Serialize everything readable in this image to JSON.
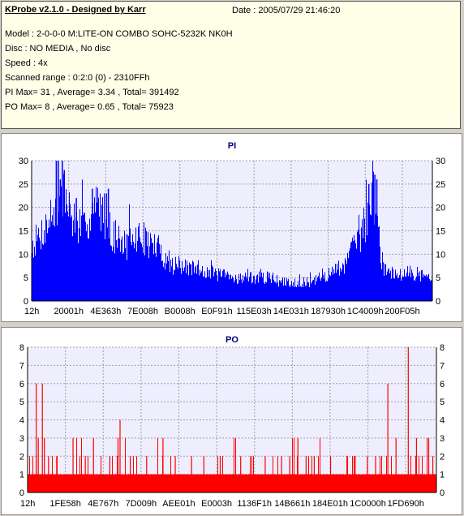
{
  "header": {
    "title": "KProbe v2.1.0 - Designed by Karr",
    "date": "Date : 2005/07/29 21:46:20",
    "lines": [
      "Model : 2-0-0-0 M:LITE-ON COMBO SOHC-5232K NK0H",
      "Disc : NO MEDIA , No disc",
      "Speed : 4x",
      "Scanned range : 0:2:0 (0) - 2310FFh",
      "PI Max= 31 , Average= 3.34 , Total= 391492",
      "PO Max= 8 , Average= 0.65 , Total= 75923"
    ]
  },
  "colors": {
    "pi": "#0000ff",
    "po": "#ff0000",
    "plot_bg": "#eeeeff",
    "grid": "#a0a0a0"
  },
  "chart_data": [
    {
      "type": "bar",
      "title": "PI",
      "ylim": [
        0,
        30
      ],
      "yticks": [
        0,
        5,
        10,
        15,
        20,
        25,
        30
      ],
      "xticks": [
        "12h",
        "20001h",
        "4E363h",
        "7E008h",
        "B0008h",
        "E0F91h",
        "115E03h",
        "14E031h",
        "187930h",
        "1C4009h",
        "200F05h"
      ],
      "profile": [
        [
          0,
          12
        ],
        [
          0.02,
          14
        ],
        [
          0.04,
          17
        ],
        [
          0.06,
          20
        ],
        [
          0.08,
          22
        ],
        [
          0.1,
          18
        ],
        [
          0.13,
          15
        ],
        [
          0.15,
          19
        ],
        [
          0.17,
          21
        ],
        [
          0.19,
          16
        ],
        [
          0.21,
          13
        ],
        [
          0.24,
          12
        ],
        [
          0.27,
          14
        ],
        [
          0.3,
          12
        ],
        [
          0.32,
          11
        ],
        [
          0.34,
          8
        ],
        [
          0.38,
          7
        ],
        [
          0.42,
          7
        ],
        [
          0.45,
          6
        ],
        [
          0.5,
          5
        ],
        [
          0.55,
          5
        ],
        [
          0.6,
          5
        ],
        [
          0.62,
          4
        ],
        [
          0.65,
          4
        ],
        [
          0.7,
          4
        ],
        [
          0.72,
          5
        ],
        [
          0.75,
          6
        ],
        [
          0.78,
          8
        ],
        [
          0.8,
          11
        ],
        [
          0.82,
          14
        ],
        [
          0.84,
          19
        ],
        [
          0.85,
          22
        ],
        [
          0.86,
          23
        ],
        [
          0.87,
          8
        ],
        [
          0.9,
          6
        ],
        [
          0.95,
          6
        ],
        [
          1,
          5
        ]
      ],
      "spikes": [
        [
          0.06,
          30
        ],
        [
          0.065,
          31
        ],
        [
          0.07,
          26
        ],
        [
          0.075,
          31
        ],
        [
          0.08,
          28
        ],
        [
          0.11,
          22
        ],
        [
          0.15,
          24
        ],
        [
          0.185,
          23
        ],
        [
          0.19,
          24
        ],
        [
          0.84,
          25
        ],
        [
          0.855,
          27
        ],
        [
          0.86,
          26
        ]
      ]
    },
    {
      "type": "bar",
      "title": "PO",
      "ylim": [
        0,
        8
      ],
      "yticks": [
        0,
        1,
        2,
        3,
        4,
        5,
        6,
        7,
        8
      ],
      "xticks": [
        "12h",
        "1FE58h",
        "4E767h",
        "7D009h",
        "AEE01h",
        "E0003h",
        "1136F1h",
        "14B661h",
        "184E01h",
        "1C0000h",
        "1FD690h"
      ],
      "baseline": 1,
      "spikes": [
        [
          0.02,
          6
        ],
        [
          0.035,
          6
        ],
        [
          0.025,
          3
        ],
        [
          0.04,
          3
        ],
        [
          0.05,
          2
        ],
        [
          0.07,
          2
        ],
        [
          0.11,
          3
        ],
        [
          0.14,
          2
        ],
        [
          0.16,
          3
        ],
        [
          0.2,
          2
        ],
        [
          0.22,
          3
        ],
        [
          0.225,
          4
        ],
        [
          0.25,
          2
        ],
        [
          0.29,
          2
        ],
        [
          0.33,
          3
        ],
        [
          0.36,
          2
        ],
        [
          0.4,
          2
        ],
        [
          0.43,
          2
        ],
        [
          0.47,
          2
        ],
        [
          0.52,
          2
        ],
        [
          0.58,
          2
        ],
        [
          0.62,
          2
        ],
        [
          0.64,
          2
        ],
        [
          0.66,
          3
        ],
        [
          0.68,
          2
        ],
        [
          0.7,
          2
        ],
        [
          0.74,
          2
        ],
        [
          0.78,
          2
        ],
        [
          0.8,
          2
        ],
        [
          0.83,
          2
        ],
        [
          0.85,
          2
        ],
        [
          0.88,
          6
        ],
        [
          0.9,
          3
        ],
        [
          0.93,
          8
        ],
        [
          0.95,
          3
        ],
        [
          0.98,
          3
        ],
        [
          0.99,
          2
        ]
      ]
    }
  ]
}
